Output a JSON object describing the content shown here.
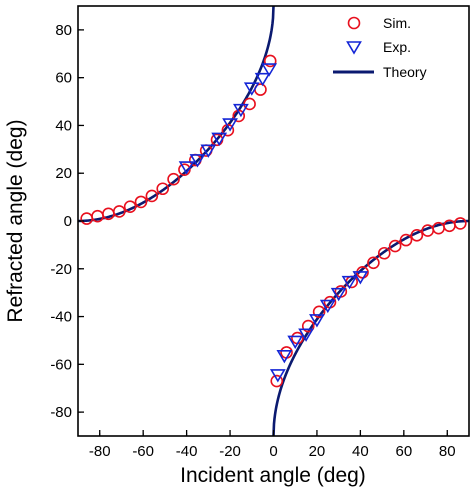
{
  "chart_data": {
    "type": "scatter",
    "xlabel": "Incident angle (deg)",
    "ylabel": "Refracted angle (deg)",
    "xlim": [
      -90,
      90
    ],
    "ylim": [
      -90,
      90
    ],
    "xticks": [
      -80,
      -60,
      -40,
      -20,
      0,
      20,
      40,
      60,
      80
    ],
    "yticks": [
      -80,
      -60,
      -40,
      -20,
      0,
      20,
      40,
      60,
      80
    ],
    "legend_position": "top-right",
    "series": [
      {
        "name": "Sim.",
        "marker": "circle",
        "color": "#e8101e",
        "x": [
          -86,
          -81,
          -76,
          -71,
          -66,
          -61,
          -56,
          -51,
          -46,
          -41,
          -36,
          -31,
          -26,
          -21,
          -16,
          -11,
          -6,
          -1.5,
          1.5,
          6,
          11,
          16,
          21,
          26,
          31,
          36,
          41,
          46,
          51,
          56,
          61,
          66,
          71,
          76,
          81,
          86
        ],
        "y": [
          1,
          2,
          3,
          4,
          6,
          8,
          10.5,
          13.5,
          17.5,
          21.5,
          25.5,
          29.5,
          34,
          38,
          44,
          49,
          55,
          67,
          -67,
          -55,
          -49,
          -44,
          -38,
          -34,
          -29.5,
          -25.5,
          -21.5,
          -17.5,
          -13.5,
          -10.5,
          -8,
          -6,
          -4,
          -3,
          -2,
          -1
        ]
      },
      {
        "name": "Exp.",
        "marker": "triangle-down",
        "color": "#1426d6",
        "x": [
          -40,
          -35,
          -30,
          -25,
          -20,
          -15,
          -10,
          -5,
          -2,
          2,
          5,
          10,
          15,
          20,
          25,
          30,
          35,
          40
        ],
        "y": [
          23,
          26,
          30,
          35,
          41,
          47,
          56,
          60,
          64,
          -64,
          -56,
          -50,
          -47,
          -41,
          -35,
          -30,
          -25,
          -23
        ]
      },
      {
        "name": "Theory",
        "type": "line",
        "color": "#0b1a70",
        "formula": "sin(theta_t) = sin(theta_i) - 1"
      }
    ]
  }
}
